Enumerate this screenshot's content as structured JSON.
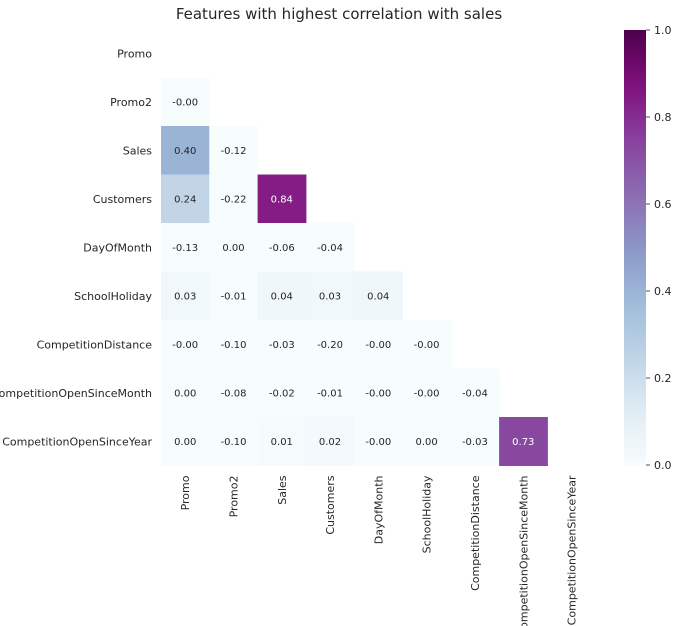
{
  "chart_data": {
    "type": "heatmap",
    "title": "Features with highest correlation with sales",
    "labels": [
      "Promo",
      "Promo2",
      "Sales",
      "Customers",
      "DayOfMonth",
      "SchoolHoliday",
      "CompetitionDistance",
      "CompetitionOpenSinceMonth",
      "CompetitionOpenSinceYear"
    ],
    "mask": "upper-triangle-including-diagonal",
    "lower_triangle": [
      [],
      [
        -0.0
      ],
      [
        0.4,
        -0.12
      ],
      [
        0.24,
        -0.22,
        0.84
      ],
      [
        -0.13,
        0.0,
        -0.06,
        -0.04
      ],
      [
        0.03,
        -0.01,
        0.04,
        0.03,
        0.04
      ],
      [
        -0.0,
        -0.1,
        -0.03,
        -0.2,
        -0.0,
        -0.0
      ],
      [
        0.0,
        -0.08,
        -0.02,
        -0.01,
        -0.0,
        -0.0,
        -0.04
      ],
      [
        0.0,
        -0.1,
        0.01,
        0.02,
        -0.0,
        0.0,
        -0.03,
        0.73
      ]
    ],
    "cell_text": [
      [],
      [
        "-0.00"
      ],
      [
        "0.40",
        "-0.12"
      ],
      [
        "0.24",
        "-0.22",
        "0.84"
      ],
      [
        "-0.13",
        "0.00",
        "-0.06",
        "-0.04"
      ],
      [
        "0.03",
        "-0.01",
        "0.04",
        "0.03",
        "0.04"
      ],
      [
        "-0.00",
        "-0.10",
        "-0.03",
        "-0.20",
        "-0.00",
        "-0.00"
      ],
      [
        "0.00",
        "-0.08",
        "-0.02",
        "-0.01",
        "-0.00",
        "-0.00",
        "-0.04"
      ],
      [
        "0.00",
        "-0.10",
        "0.01",
        "0.02",
        "-0.00",
        "0.00",
        "-0.03",
        "0.73"
      ]
    ],
    "colormap": "BuPu",
    "colorbar": {
      "range": [
        0.0,
        1.0
      ],
      "ticks": [
        0.0,
        0.2,
        0.4,
        0.6,
        0.8,
        1.0
      ],
      "tick_labels": [
        "0.0",
        "0.2",
        "0.4",
        "0.6",
        "0.8",
        "1.0"
      ]
    },
    "annotation_colors": {
      "dark": "#262626",
      "light": "#ffffff"
    }
  }
}
